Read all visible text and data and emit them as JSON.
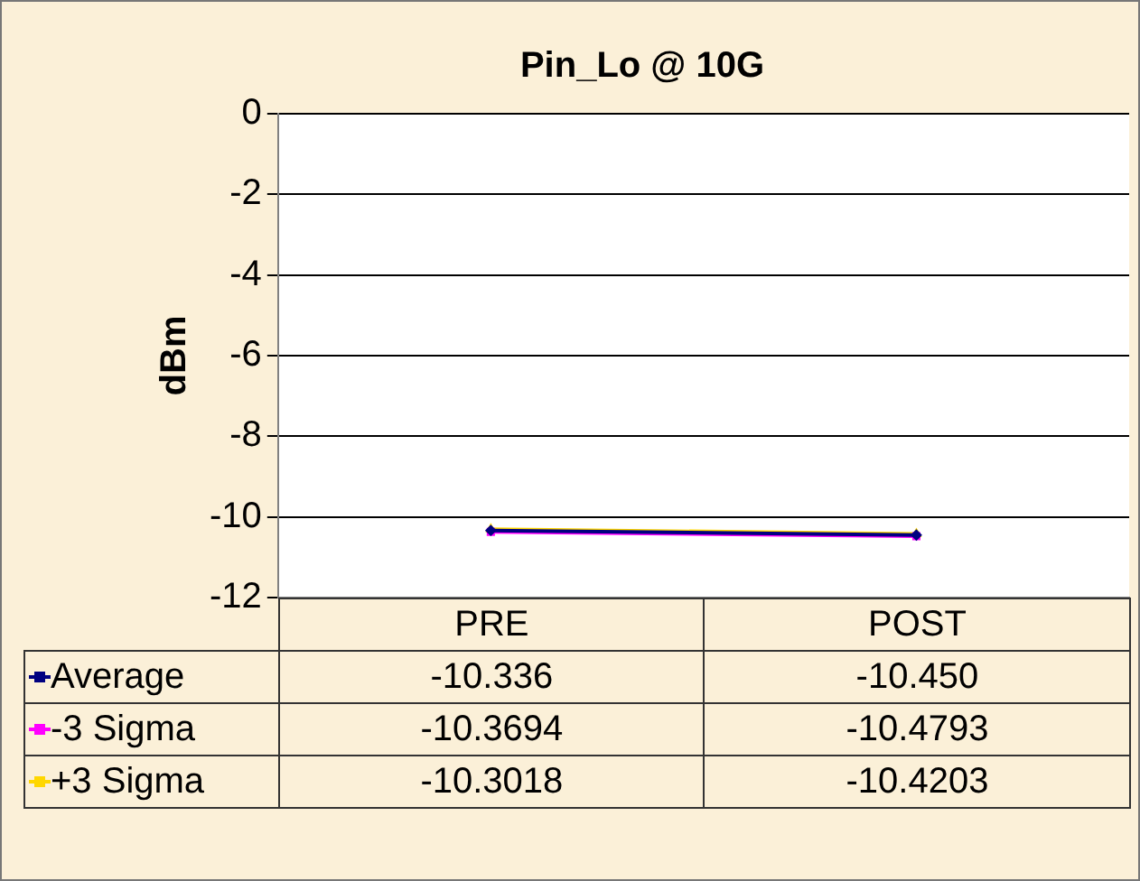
{
  "chart_data": {
    "type": "line",
    "title": "Pin_Lo @ 10G",
    "ylabel": "dBm",
    "categories": [
      "PRE",
      "POST"
    ],
    "series": [
      {
        "name": "Average",
        "color": "#000080",
        "values": [
          -10.336,
          -10.45
        ],
        "value_labels": [
          "-10.336",
          "-10.450"
        ],
        "marker": "diamond"
      },
      {
        "name": "-3 Sigma",
        "color": "#ff00ff",
        "values": [
          -10.3694,
          -10.4793
        ],
        "value_labels": [
          "-10.3694",
          "-10.4793"
        ],
        "marker": "square"
      },
      {
        "name": "+3 Sigma",
        "color": "#ffd700",
        "values": [
          -10.3018,
          -10.4203
        ],
        "value_labels": [
          "-10.3018",
          "-10.4203"
        ],
        "marker": "triangle"
      }
    ],
    "ylim": [
      -12,
      0
    ],
    "yticks": [
      -12,
      -10,
      -8,
      -6,
      -4,
      -2,
      0
    ],
    "grid": "y",
    "legend": "bottom"
  }
}
